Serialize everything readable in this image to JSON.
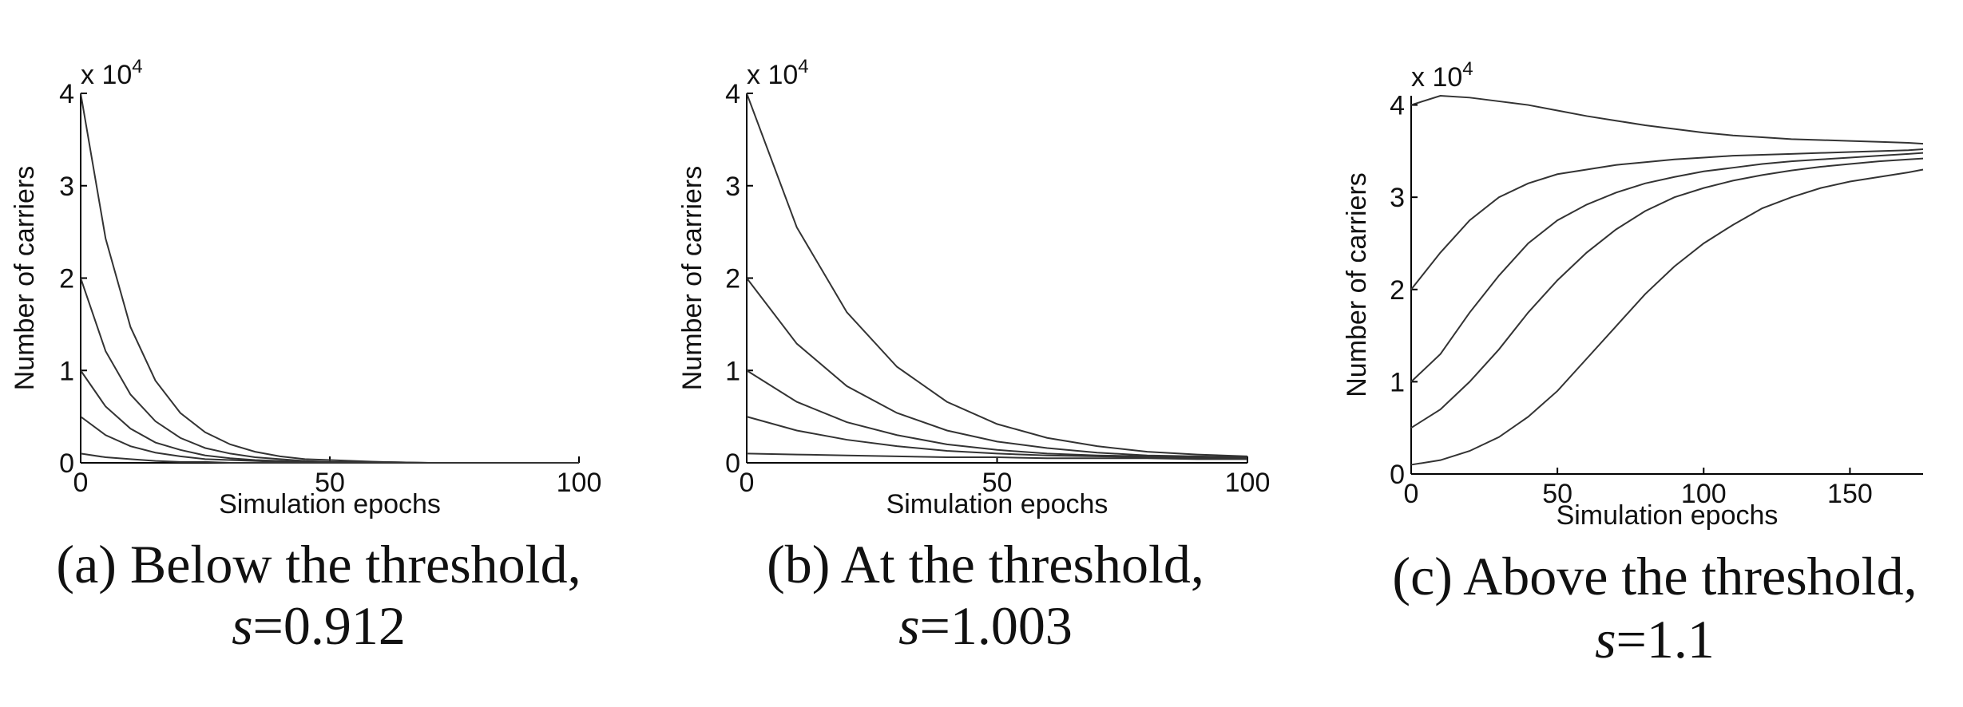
{
  "chart_data": [
    {
      "type": "line",
      "xlabel": "Simulation epochs",
      "ylabel": "Number of carriers",
      "y_scale": "x 10",
      "y_scale_exponent": "4",
      "caption": "(a) Below the threshold,",
      "caption_symbol": "s",
      "caption_value": "=0.912",
      "xlim": [
        0,
        100
      ],
      "ylim": [
        0,
        4
      ],
      "xticks": [
        0,
        50,
        100
      ],
      "yticks": [
        0,
        1,
        2,
        3,
        4
      ],
      "x": [
        0,
        5,
        10,
        15,
        20,
        25,
        30,
        35,
        40,
        45,
        50,
        60,
        70,
        80,
        90,
        100
      ],
      "series": [
        {
          "color": "#333333",
          "values": [
            4,
            2.43,
            1.47,
            0.89,
            0.54,
            0.33,
            0.2,
            0.12,
            0.07,
            0.04,
            0.03,
            0.01,
            0,
            0,
            0,
            0
          ]
        },
        {
          "color": "#333333",
          "values": [
            2,
            1.21,
            0.74,
            0.45,
            0.27,
            0.16,
            0.1,
            0.06,
            0.04,
            0.02,
            0.01,
            0.01,
            0,
            0,
            0,
            0
          ]
        },
        {
          "color": "#333333",
          "values": [
            1,
            0.61,
            0.37,
            0.22,
            0.14,
            0.08,
            0.05,
            0.03,
            0.02,
            0.01,
            0.01,
            0,
            0,
            0,
            0,
            0
          ]
        },
        {
          "color": "#333333",
          "values": [
            0.5,
            0.3,
            0.18,
            0.11,
            0.07,
            0.04,
            0.03,
            0.02,
            0.01,
            0.01,
            0,
            0,
            0,
            0,
            0,
            0
          ]
        },
        {
          "color": "#333333",
          "values": [
            0.1,
            0.06,
            0.04,
            0.02,
            0.01,
            0.01,
            0,
            0,
            0,
            0,
            0,
            0,
            0,
            0,
            0,
            0
          ]
        }
      ]
    },
    {
      "type": "line",
      "xlabel": "Simulation epochs",
      "ylabel": "Number of carriers",
      "y_scale": "x 10",
      "y_scale_exponent": "4",
      "caption": "(b) At the threshold,",
      "caption_symbol": "s",
      "caption_value": "=1.003",
      "xlim": [
        0,
        100
      ],
      "ylim": [
        0,
        4
      ],
      "xticks": [
        0,
        50,
        100
      ],
      "yticks": [
        0,
        1,
        2,
        3,
        4
      ],
      "x": [
        0,
        10,
        20,
        30,
        40,
        50,
        60,
        70,
        80,
        90,
        100
      ],
      "series": [
        {
          "color": "#333333",
          "values": [
            4,
            2.55,
            1.63,
            1.04,
            0.66,
            0.42,
            0.27,
            0.18,
            0.12,
            0.09,
            0.07
          ]
        },
        {
          "color": "#333333",
          "values": [
            2,
            1.29,
            0.83,
            0.54,
            0.35,
            0.23,
            0.16,
            0.11,
            0.08,
            0.07,
            0.06
          ]
        },
        {
          "color": "#333333",
          "values": [
            1,
            0.66,
            0.44,
            0.3,
            0.2,
            0.14,
            0.1,
            0.08,
            0.07,
            0.06,
            0.05
          ]
        },
        {
          "color": "#333333",
          "values": [
            0.5,
            0.35,
            0.25,
            0.18,
            0.13,
            0.1,
            0.08,
            0.07,
            0.06,
            0.05,
            0.05
          ]
        },
        {
          "color": "#333333",
          "values": [
            0.1,
            0.09,
            0.08,
            0.07,
            0.06,
            0.06,
            0.05,
            0.05,
            0.05,
            0.04,
            0.04
          ]
        }
      ]
    },
    {
      "type": "line",
      "xlabel": "Simulation epochs",
      "ylabel": "Number of carriers",
      "y_scale": "x 10",
      "y_scale_exponent": "4",
      "caption": "(c) Above the threshold,",
      "caption_symbol": "s",
      "caption_value": "=1.1",
      "xlim": [
        0,
        175
      ],
      "ylim": [
        0,
        4.1
      ],
      "xticks": [
        0,
        50,
        100,
        150
      ],
      "yticks": [
        0,
        1,
        2,
        3,
        4
      ],
      "x": [
        0,
        10,
        20,
        30,
        40,
        50,
        60,
        70,
        80,
        90,
        100,
        110,
        120,
        130,
        140,
        150,
        160,
        170,
        175
      ],
      "series": [
        {
          "color": "#333333",
          "values": [
            4,
            4.1,
            4.08,
            4.04,
            4.0,
            3.94,
            3.88,
            3.83,
            3.78,
            3.74,
            3.7,
            3.67,
            3.65,
            3.63,
            3.62,
            3.61,
            3.6,
            3.59,
            3.58
          ]
        },
        {
          "color": "#333333",
          "values": [
            2,
            2.4,
            2.75,
            3.0,
            3.15,
            3.25,
            3.3,
            3.35,
            3.38,
            3.41,
            3.43,
            3.45,
            3.46,
            3.47,
            3.48,
            3.49,
            3.5,
            3.51,
            3.52
          ]
        },
        {
          "color": "#333333",
          "values": [
            1,
            1.3,
            1.75,
            2.15,
            2.5,
            2.75,
            2.92,
            3.05,
            3.15,
            3.22,
            3.28,
            3.32,
            3.36,
            3.39,
            3.41,
            3.43,
            3.45,
            3.47,
            3.48
          ]
        },
        {
          "color": "#333333",
          "values": [
            0.5,
            0.7,
            1.0,
            1.35,
            1.75,
            2.1,
            2.4,
            2.65,
            2.85,
            3.0,
            3.1,
            3.18,
            3.24,
            3.29,
            3.33,
            3.36,
            3.39,
            3.41,
            3.42
          ]
        },
        {
          "color": "#333333",
          "values": [
            0.1,
            0.15,
            0.25,
            0.4,
            0.62,
            0.9,
            1.25,
            1.6,
            1.95,
            2.25,
            2.5,
            2.7,
            2.88,
            3.0,
            3.1,
            3.17,
            3.22,
            3.27,
            3.3
          ]
        }
      ]
    }
  ]
}
